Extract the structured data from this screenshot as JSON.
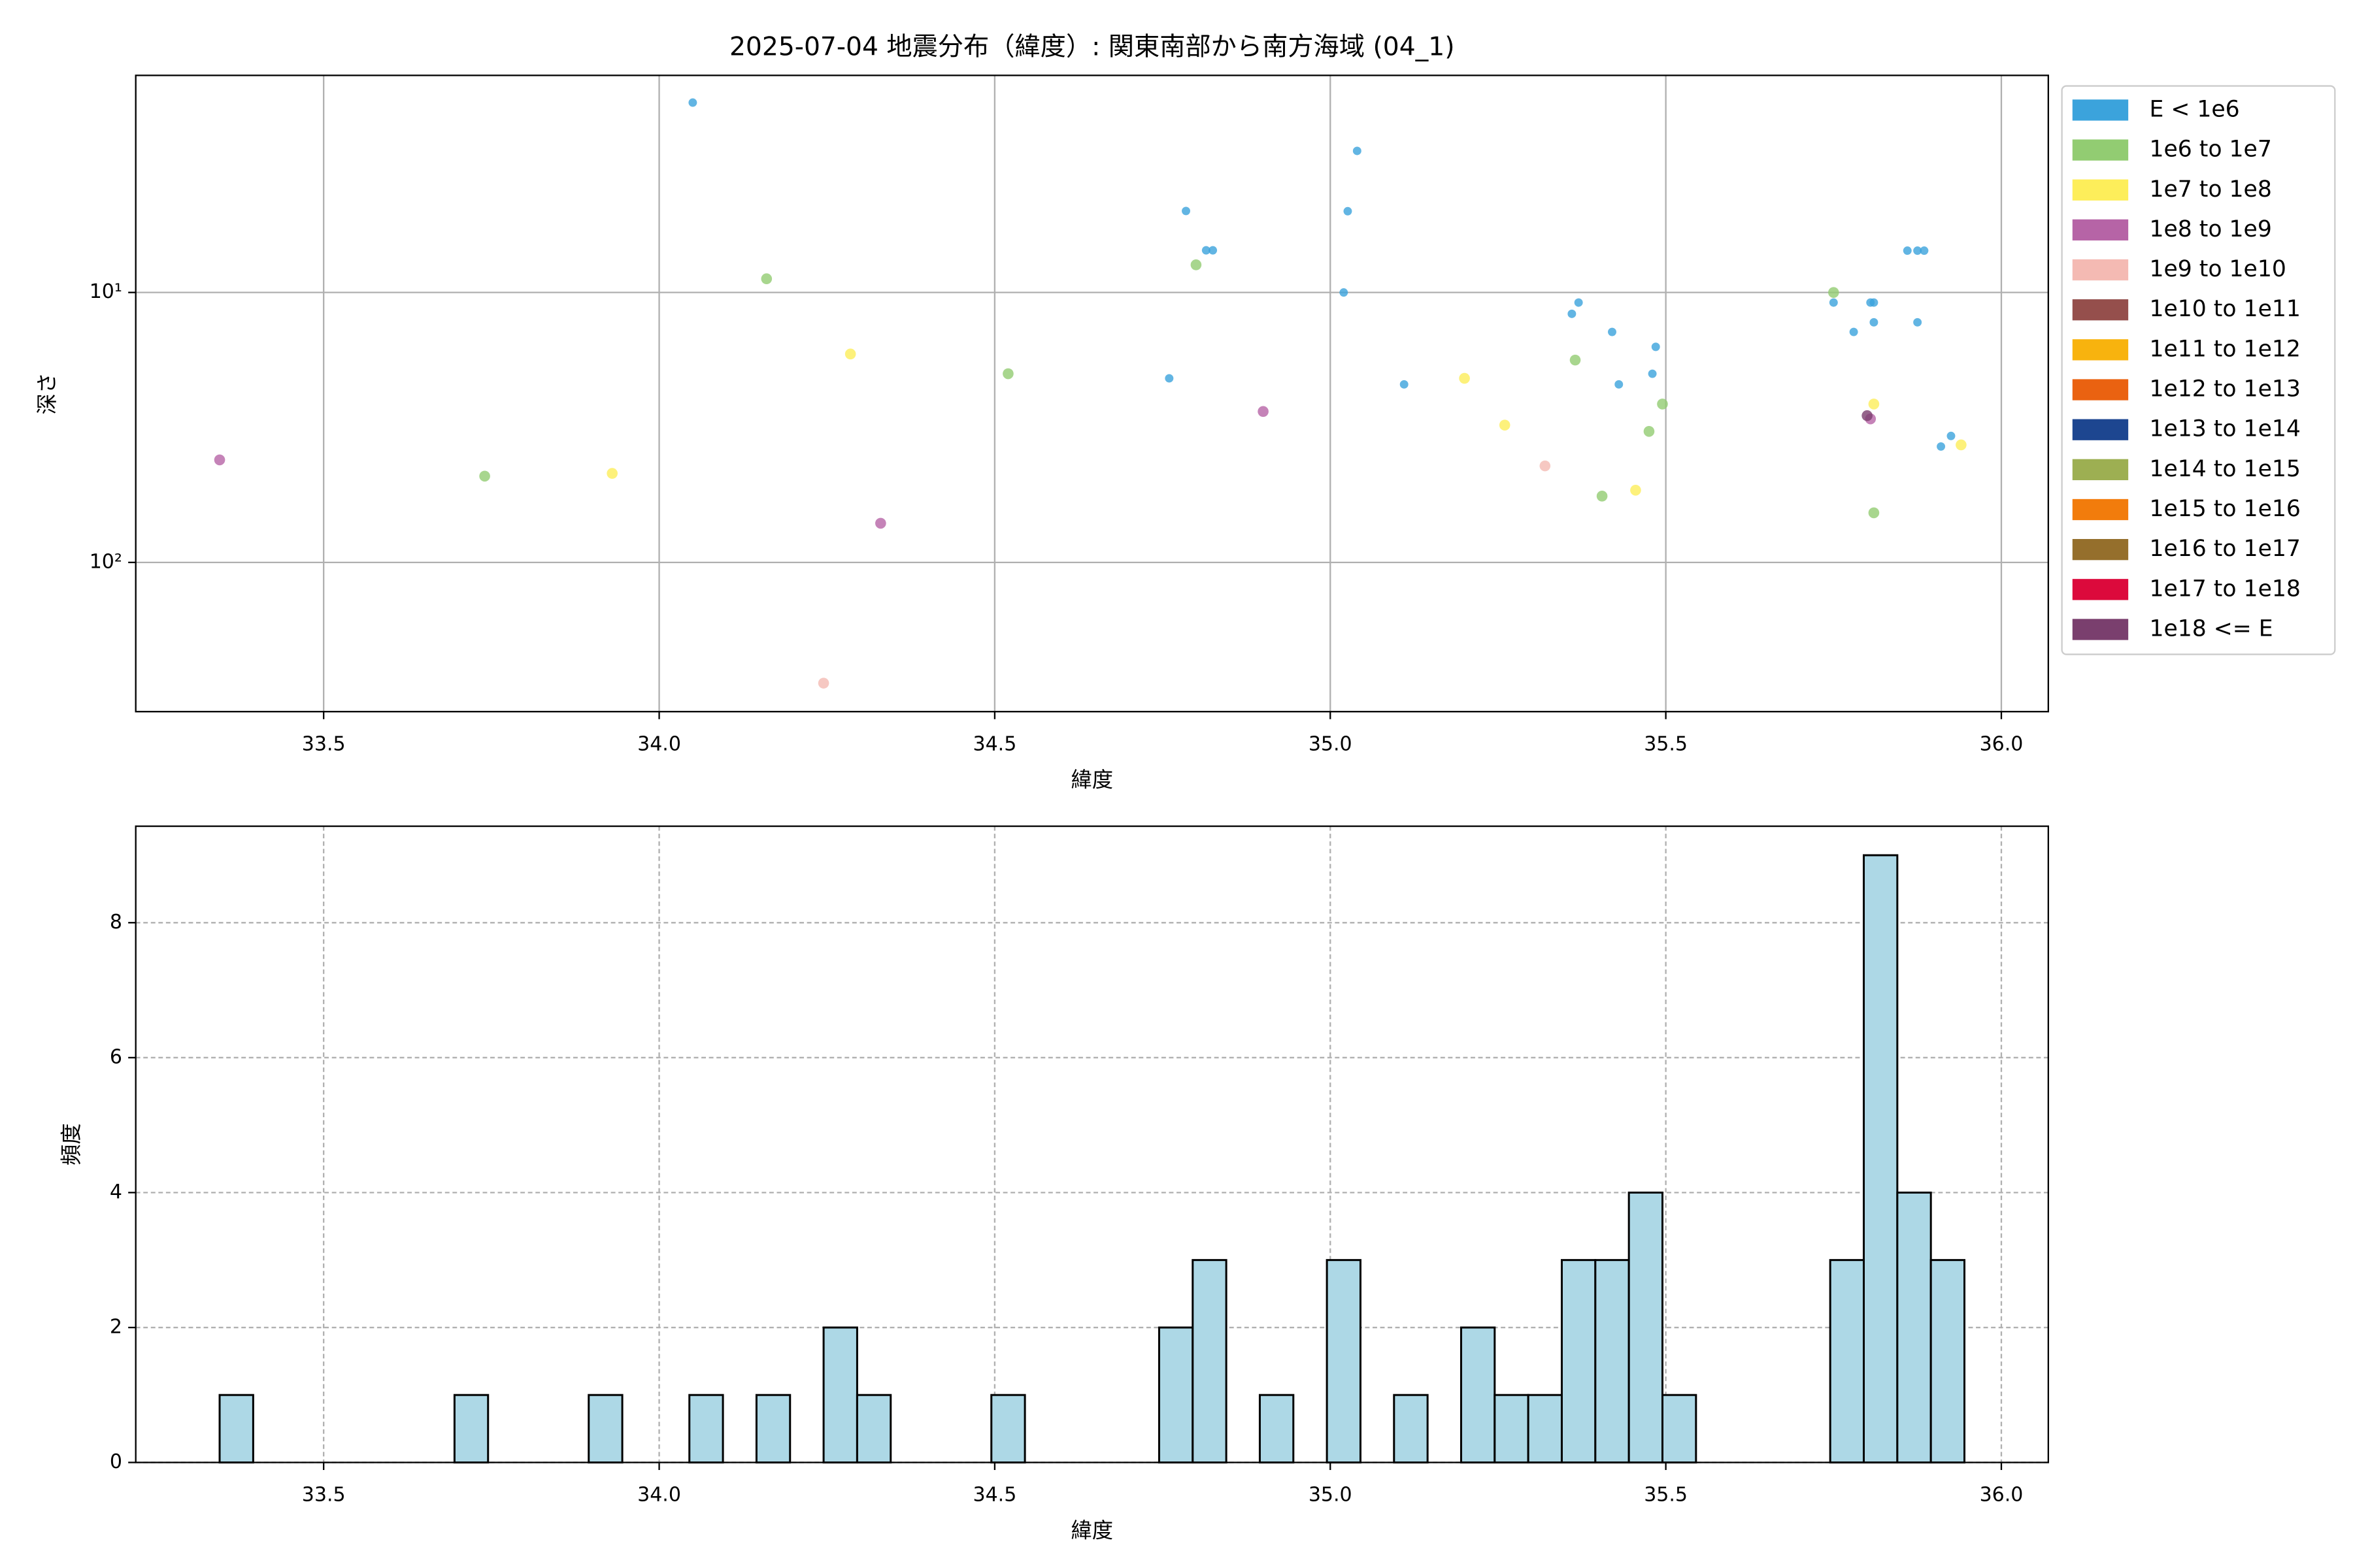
{
  "chart_data": [
    {
      "type": "scatter",
      "title": "2025-07-04 地震分布（緯度）: 関東南部から南方海域 (04_1)",
      "xlabel": "緯度",
      "ylabel": "深さ",
      "xlim": [
        33.22,
        36.07
      ],
      "xticks": [
        33.5,
        {
          "value": 34,
          "label": "34.0"
        },
        34.5,
        {
          "value": 35,
          "label": "35.0"
        },
        35.5,
        {
          "value": 36,
          "label": "36.0"
        }
      ],
      "ylim": [
        1.57,
        357
      ],
      "ylog": true,
      "yinvert": true,
      "yticks": [
        {
          "value": 10,
          "label": "10¹"
        },
        {
          "value": 100,
          "label": "10²"
        }
      ],
      "grid": true,
      "legend": "outside right",
      "series": [
        {
          "name": "E < 1e6",
          "color": "#3ba3dc",
          "x": [
            34.05,
            35.04,
            34.785,
            34.815,
            34.825,
            35.026,
            35.02,
            35.37,
            35.36,
            35.42,
            35.485,
            35.48,
            35.43,
            35.11,
            34.76,
            35.75,
            35.805,
            35.81,
            35.81,
            35.78,
            35.86,
            35.875,
            35.885,
            35.875,
            35.925,
            35.91
          ],
          "y": [
            1.98,
            2.99,
            4.99,
            6.98,
            6.98,
            5.0,
            10,
            10.9,
            12.0,
            14.0,
            15.9,
            20.0,
            21.9,
            21.9,
            20.8,
            10.9,
            10.9,
            10.9,
            12.9,
            14.0,
            7.0,
            7.0,
            7.0,
            12.9,
            34.0,
            37.2
          ]
        },
        {
          "name": "1e6 to 1e7",
          "color": "#92cc72",
          "x": [
            34.16,
            34.8,
            34.52,
            33.74,
            35.365,
            35.495,
            35.475,
            35.405,
            35.75,
            35.81
          ],
          "y": [
            8.9,
            7.9,
            20,
            47.9,
            17.8,
            25.9,
            32.7,
            56.8,
            10,
            65.5
          ]
        },
        {
          "name": "1e7 to 1e8",
          "color": "#fdee5a",
          "x": [
            34.285,
            33.93,
            35.2,
            35.26,
            35.455,
            35.81,
            35.94
          ],
          "y": [
            16.9,
            46.8,
            20.8,
            31,
            54,
            25.9,
            36.7
          ]
        },
        {
          "name": "1e8 to 1e9",
          "color": "#b664a6",
          "x": [
            33.345,
            34.9,
            34.33,
            35.805
          ],
          "y": [
            41.7,
            27.6,
            71.6,
            29.4
          ]
        },
        {
          "name": "1e9 to 1e10",
          "color": "#f4bab3",
          "x": [
            34.245,
            35.32
          ],
          "y": [
            280,
            43.9
          ]
        },
        {
          "name": "1e10 to 1e11",
          "color": "#954f4c",
          "x": [],
          "y": []
        },
        {
          "name": "1e11 to 1e12",
          "color": "#f8b30e",
          "x": [],
          "y": []
        },
        {
          "name": "1e12 to 1e13",
          "color": "#ea6211",
          "x": [],
          "y": []
        },
        {
          "name": "1e13 to 1e14",
          "color": "#1d4690",
          "x": [],
          "y": []
        },
        {
          "name": "1e14 to 1e15",
          "color": "#9daf52",
          "x": [],
          "y": []
        },
        {
          "name": "1e15 to 1e16",
          "color": "#f27c0c",
          "x": [],
          "y": []
        },
        {
          "name": "1e16 to 1e17",
          "color": "#956f2c",
          "x": [],
          "y": []
        },
        {
          "name": "1e17 to 1e18",
          "color": "#dc0a3c",
          "x": [],
          "y": []
        },
        {
          "name": "1e18 <= E",
          "color": "#7a3f6e",
          "x": [
            35.8
          ],
          "y": [
            28.6
          ]
        }
      ]
    },
    {
      "type": "histogram",
      "xlabel": "緯度",
      "ylabel": "頻度",
      "color": "#add8e6",
      "edgecolor": "#000000",
      "xlim": [
        33.22,
        36.07
      ],
      "xticks": [
        33.5,
        {
          "value": 34,
          "label": "34.0"
        },
        34.5,
        {
          "value": 35,
          "label": "35.0"
        },
        35.5,
        {
          "value": 36,
          "label": "36.0"
        }
      ],
      "ylim": [
        0,
        9.43
      ],
      "yticks": [
        0,
        2,
        4,
        6,
        8
      ],
      "grid": true,
      "bins": [
        33.345,
        33.395,
        33.445,
        33.495,
        33.545,
        33.595,
        33.645,
        33.695,
        33.745,
        33.795,
        33.845,
        33.895,
        33.945,
        33.995,
        34.045,
        34.095,
        34.145,
        34.195,
        34.245,
        34.295,
        34.345,
        34.395,
        34.445,
        34.495,
        34.545,
        34.595,
        34.645,
        34.695,
        34.745,
        34.795,
        34.845,
        34.895,
        34.945,
        34.995,
        35.045,
        35.095,
        35.145,
        35.195,
        35.245,
        35.295,
        35.345,
        35.395,
        35.445,
        35.495,
        35.545,
        35.595,
        35.645,
        35.695,
        35.745,
        35.795,
        35.845,
        35.895,
        35.945
      ],
      "values": [
        1,
        0,
        0,
        0,
        0,
        0,
        0,
        1,
        0,
        0,
        0,
        1,
        0,
        0,
        1,
        0,
        1,
        0,
        2,
        1,
        0,
        0,
        0,
        1,
        0,
        0,
        0,
        0,
        2,
        3,
        0,
        1,
        0,
        3,
        0,
        1,
        0,
        2,
        1,
        1,
        3,
        3,
        4,
        1,
        0,
        0,
        0,
        0,
        3,
        9,
        4,
        3
      ]
    }
  ]
}
